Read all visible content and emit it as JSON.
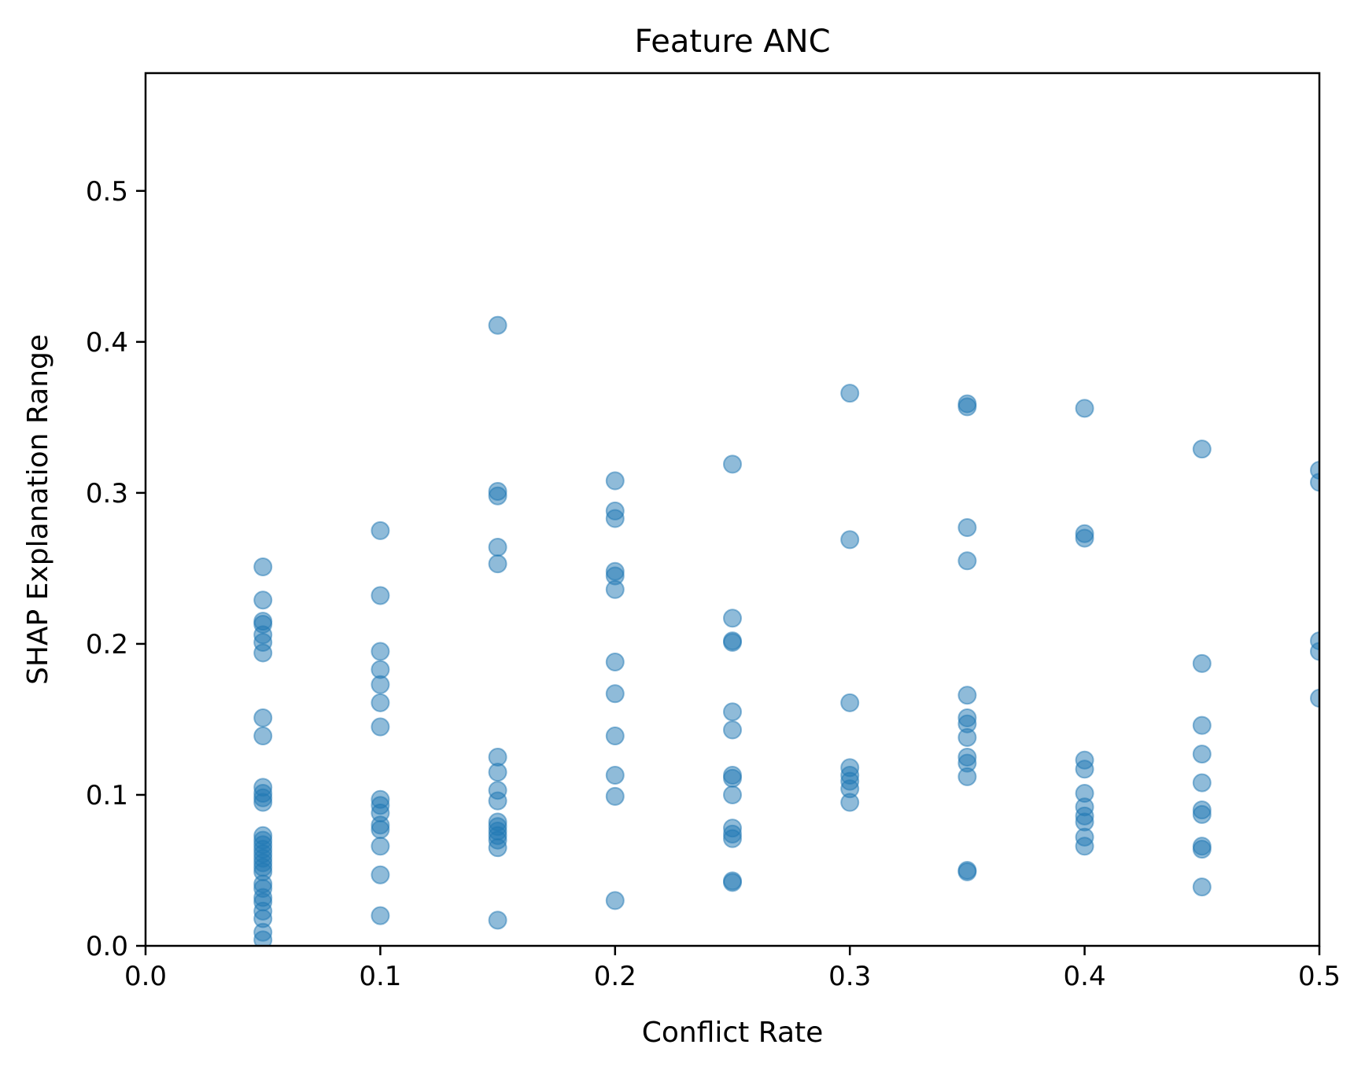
{
  "chart_data": {
    "type": "scatter",
    "title": "Feature ANC",
    "xlabel": "Conflict Rate",
    "ylabel": "SHAP Explanation Range",
    "xlim": [
      0.0,
      0.5
    ],
    "ylim": [
      0.0,
      0.578
    ],
    "xticks": [
      "0.0",
      "0.1",
      "0.2",
      "0.3",
      "0.4",
      "0.5"
    ],
    "yticks": [
      "0.0",
      "0.1",
      "0.2",
      "0.3",
      "0.4",
      "0.5"
    ],
    "grid": false,
    "marker_color": "#1f77b4",
    "marker_alpha": 0.5,
    "points": [
      [
        0.05,
        0.251
      ],
      [
        0.05,
        0.229
      ],
      [
        0.05,
        0.215
      ],
      [
        0.05,
        0.213
      ],
      [
        0.05,
        0.206
      ],
      [
        0.05,
        0.201
      ],
      [
        0.05,
        0.194
      ],
      [
        0.05,
        0.151
      ],
      [
        0.05,
        0.139
      ],
      [
        0.05,
        0.105
      ],
      [
        0.05,
        0.101
      ],
      [
        0.05,
        0.098
      ],
      [
        0.05,
        0.095
      ],
      [
        0.05,
        0.073
      ],
      [
        0.05,
        0.07
      ],
      [
        0.05,
        0.067
      ],
      [
        0.05,
        0.064
      ],
      [
        0.05,
        0.061
      ],
      [
        0.05,
        0.058
      ],
      [
        0.05,
        0.055
      ],
      [
        0.05,
        0.052
      ],
      [
        0.05,
        0.049
      ],
      [
        0.05,
        0.041
      ],
      [
        0.05,
        0.038
      ],
      [
        0.05,
        0.032
      ],
      [
        0.05,
        0.029
      ],
      [
        0.05,
        0.023
      ],
      [
        0.05,
        0.018
      ],
      [
        0.05,
        0.009
      ],
      [
        0.05,
        0.004
      ],
      [
        0.1,
        0.275
      ],
      [
        0.1,
        0.232
      ],
      [
        0.1,
        0.195
      ],
      [
        0.1,
        0.183
      ],
      [
        0.1,
        0.173
      ],
      [
        0.1,
        0.161
      ],
      [
        0.1,
        0.145
      ],
      [
        0.1,
        0.097
      ],
      [
        0.1,
        0.093
      ],
      [
        0.1,
        0.088
      ],
      [
        0.1,
        0.08
      ],
      [
        0.1,
        0.077
      ],
      [
        0.1,
        0.066
      ],
      [
        0.1,
        0.047
      ],
      [
        0.1,
        0.02
      ],
      [
        0.15,
        0.411
      ],
      [
        0.15,
        0.301
      ],
      [
        0.15,
        0.298
      ],
      [
        0.15,
        0.264
      ],
      [
        0.15,
        0.253
      ],
      [
        0.15,
        0.125
      ],
      [
        0.15,
        0.115
      ],
      [
        0.15,
        0.103
      ],
      [
        0.15,
        0.096
      ],
      [
        0.15,
        0.082
      ],
      [
        0.15,
        0.079
      ],
      [
        0.15,
        0.076
      ],
      [
        0.15,
        0.073
      ],
      [
        0.15,
        0.07
      ],
      [
        0.15,
        0.065
      ],
      [
        0.15,
        0.017
      ],
      [
        0.2,
        0.308
      ],
      [
        0.2,
        0.288
      ],
      [
        0.2,
        0.283
      ],
      [
        0.2,
        0.248
      ],
      [
        0.2,
        0.245
      ],
      [
        0.2,
        0.236
      ],
      [
        0.2,
        0.188
      ],
      [
        0.2,
        0.167
      ],
      [
        0.2,
        0.139
      ],
      [
        0.2,
        0.113
      ],
      [
        0.2,
        0.099
      ],
      [
        0.2,
        0.03
      ],
      [
        0.25,
        0.319
      ],
      [
        0.25,
        0.217
      ],
      [
        0.25,
        0.202
      ],
      [
        0.25,
        0.201
      ],
      [
        0.25,
        0.155
      ],
      [
        0.25,
        0.143
      ],
      [
        0.25,
        0.113
      ],
      [
        0.25,
        0.111
      ],
      [
        0.25,
        0.1
      ],
      [
        0.25,
        0.078
      ],
      [
        0.25,
        0.074
      ],
      [
        0.25,
        0.071
      ],
      [
        0.25,
        0.043
      ],
      [
        0.25,
        0.042
      ],
      [
        0.3,
        0.366
      ],
      [
        0.3,
        0.269
      ],
      [
        0.3,
        0.161
      ],
      [
        0.3,
        0.118
      ],
      [
        0.3,
        0.113
      ],
      [
        0.3,
        0.109
      ],
      [
        0.3,
        0.104
      ],
      [
        0.3,
        0.095
      ],
      [
        0.35,
        0.359
      ],
      [
        0.35,
        0.357
      ],
      [
        0.35,
        0.277
      ],
      [
        0.35,
        0.255
      ],
      [
        0.35,
        0.166
      ],
      [
        0.35,
        0.151
      ],
      [
        0.35,
        0.147
      ],
      [
        0.35,
        0.138
      ],
      [
        0.35,
        0.125
      ],
      [
        0.35,
        0.121
      ],
      [
        0.35,
        0.112
      ],
      [
        0.35,
        0.05
      ],
      [
        0.35,
        0.049
      ],
      [
        0.4,
        0.356
      ],
      [
        0.4,
        0.273
      ],
      [
        0.4,
        0.27
      ],
      [
        0.4,
        0.123
      ],
      [
        0.4,
        0.117
      ],
      [
        0.4,
        0.101
      ],
      [
        0.4,
        0.092
      ],
      [
        0.4,
        0.086
      ],
      [
        0.4,
        0.082
      ],
      [
        0.4,
        0.072
      ],
      [
        0.4,
        0.066
      ],
      [
        0.45,
        0.329
      ],
      [
        0.45,
        0.187
      ],
      [
        0.45,
        0.146
      ],
      [
        0.45,
        0.127
      ],
      [
        0.45,
        0.108
      ],
      [
        0.45,
        0.09
      ],
      [
        0.45,
        0.087
      ],
      [
        0.45,
        0.066
      ],
      [
        0.45,
        0.064
      ],
      [
        0.45,
        0.039
      ],
      [
        0.5,
        0.315
      ],
      [
        0.5,
        0.307
      ],
      [
        0.5,
        0.202
      ],
      [
        0.5,
        0.195
      ],
      [
        0.5,
        0.164
      ]
    ]
  }
}
